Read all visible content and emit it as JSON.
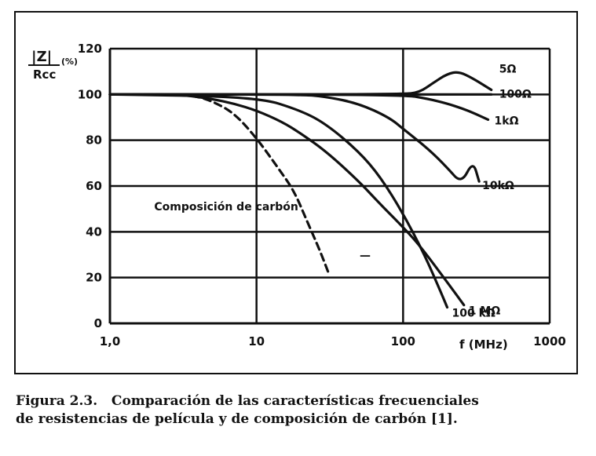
{
  "figure": {
    "caption_line1": "Figura 2.3.   Comparación de las características frecuenciales",
    "caption_line2": "de resistencias de película y de composición de carbón [1]."
  },
  "chart_data": {
    "type": "line",
    "x_scale": "log",
    "xlim": [
      1,
      1000
    ],
    "ylim": [
      0,
      120
    ],
    "grid": true,
    "ylabel_num": "|Z|",
    "ylabel_den": "Rcc",
    "ylabel_unit": "(%)",
    "xlabel": "f  (MHz)",
    "x_ticks": [
      "1,0",
      "10",
      "100",
      "1000"
    ],
    "y_ticks": [
      "0",
      "20",
      "40",
      "60",
      "80",
      "100",
      "120"
    ],
    "series": [
      {
        "name": "5Ω",
        "x": [
          1,
          100,
          130,
          160,
          200,
          240,
          300,
          400
        ],
        "y": [
          100,
          100,
          101,
          105,
          109,
          110,
          107,
          102
        ]
      },
      {
        "name": "100Ω",
        "x": [
          1,
          100,
          200,
          300,
          400
        ],
        "y": [
          100,
          100,
          100,
          100,
          100
        ]
      },
      {
        "name": "1kΩ",
        "x": [
          1,
          100,
          150,
          200,
          250,
          300,
          380
        ],
        "y": [
          100,
          100,
          98,
          96,
          94,
          92,
          89
        ]
      },
      {
        "name": "10kΩ",
        "x": [
          1,
          20,
          30,
          50,
          80,
          100,
          150,
          200,
          250,
          300,
          330
        ],
        "y": [
          100,
          100,
          99,
          96,
          90,
          85,
          76,
          68,
          61,
          71,
          62
        ]
      },
      {
        "name": "100 kΩ",
        "x": [
          1,
          10,
          20,
          30,
          50,
          70,
          100,
          140,
          180,
          200
        ],
        "y": [
          100,
          99,
          93,
          87,
          75,
          64,
          48,
          30,
          14,
          7
        ]
      },
      {
        "name": "1 MΩ",
        "x": [
          1,
          3,
          5,
          7,
          10,
          15,
          20,
          30,
          50,
          70,
          100,
          130,
          200,
          260
        ],
        "y": [
          100,
          100,
          98,
          96,
          93,
          88,
          83,
          75,
          62,
          52,
          42,
          34,
          18,
          8
        ]
      },
      {
        "name": "Composición de carbón",
        "x": [
          1,
          3,
          4,
          5,
          7,
          10,
          14,
          18,
          22,
          27,
          31
        ],
        "y": [
          100,
          100,
          99,
          97,
          92,
          81,
          68,
          58,
          45,
          32,
          22
        ],
        "dashed": true
      }
    ],
    "annotation": "—"
  }
}
